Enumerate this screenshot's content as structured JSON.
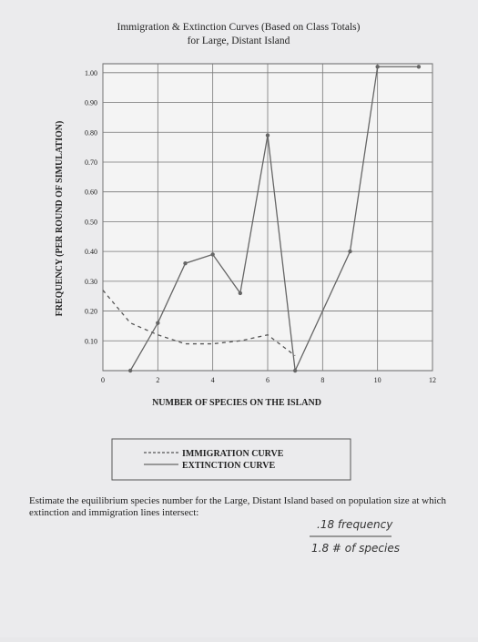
{
  "chart_data": {
    "type": "line",
    "title": "Immigration & Extinction Curves (Based on Class Totals)",
    "subtitle": "for Large, Distant Island",
    "x_label": "NUMBER OF SPECIES ON THE ISLAND",
    "y_label": "FREQUENCY (PER ROUND OF SIMULATION)",
    "xlim": [
      0,
      12
    ],
    "xticks": [
      0,
      2,
      4,
      6,
      8,
      10,
      12
    ],
    "ylim": [
      0,
      1.03
    ],
    "yticks": [
      {
        "value": 0.1,
        "label": "0.10"
      },
      {
        "value": 0.2,
        "label": "0.20"
      },
      {
        "value": 0.3,
        "label": "0.30"
      },
      {
        "value": 0.4,
        "label": "0.40"
      },
      {
        "value": 0.5,
        "label": "0.50"
      },
      {
        "value": 0.6,
        "label": "0.60"
      },
      {
        "value": 0.7,
        "label": "0.70"
      },
      {
        "value": 0.8,
        "label": "0.80"
      },
      {
        "value": 0.9,
        "label": "0.90"
      },
      {
        "value": 1.0,
        "label": "1.00"
      }
    ],
    "grid": true,
    "series": [
      {
        "name": "IMMIGRATION CURVE",
        "color": "#555555",
        "dashed": true,
        "x": [
          0,
          1,
          2,
          3,
          4,
          5,
          6,
          7
        ],
        "values": [
          0.27,
          0.16,
          0.12,
          0.09,
          0.09,
          0.1,
          0.12,
          0.05
        ]
      },
      {
        "name": "EXTINCTION CURVE",
        "color": "#666666",
        "dashed": false,
        "x": [
          1,
          2,
          3,
          4,
          5,
          6,
          7,
          9,
          10,
          11.5
        ],
        "values": [
          0,
          0.16,
          0.36,
          0.39,
          0.26,
          0.79,
          0,
          0.4,
          1.02,
          1.02
        ]
      }
    ]
  },
  "worksheet": {
    "question": "Estimate the equilibrium species number for the Large, Distant Island based on population size at which extinction and immigration lines intersect:",
    "answers": [
      ".18 frequency",
      "1.8 # of species"
    ]
  }
}
